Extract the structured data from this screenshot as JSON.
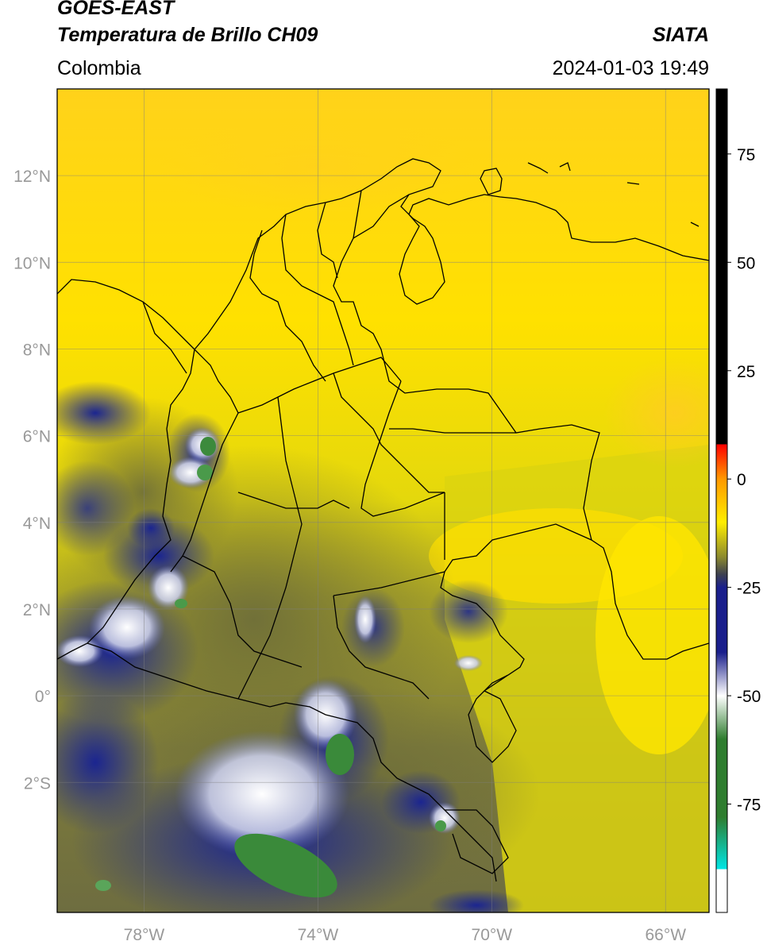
{
  "header": {
    "satellite": "GOES-EAST",
    "product": "Temperatura de Brillo CH09",
    "region": "Colombia",
    "agency": "SIATA",
    "datetime": "2024-01-03 19:49"
  },
  "map": {
    "lon_range": [
      -80,
      -65
    ],
    "lat_range": [
      -5,
      14
    ],
    "lat_ticks": [
      {
        "value": 12,
        "label": "12°N"
      },
      {
        "value": 10,
        "label": "10°N"
      },
      {
        "value": 8,
        "label": "8°N"
      },
      {
        "value": 6,
        "label": "6°N"
      },
      {
        "value": 4,
        "label": "4°N"
      },
      {
        "value": 2,
        "label": "2°N"
      },
      {
        "value": 0,
        "label": "0°"
      },
      {
        "value": -2,
        "label": "2°S"
      }
    ],
    "lon_ticks": [
      {
        "value": -78,
        "label": "78°W"
      },
      {
        "value": -74,
        "label": "74°W"
      },
      {
        "value": -70,
        "label": "70°W"
      },
      {
        "value": -66,
        "label": "66°W"
      }
    ],
    "grid": true
  },
  "colorbar": {
    "range": [
      -100,
      90
    ],
    "ticks": [
      {
        "value": 75,
        "label": "75"
      },
      {
        "value": 50,
        "label": "50"
      },
      {
        "value": 25,
        "label": "25"
      },
      {
        "value": 0,
        "label": "0"
      },
      {
        "value": -25,
        "label": "-25"
      },
      {
        "value": -50,
        "label": "-50"
      },
      {
        "value": -75,
        "label": "-75"
      }
    ],
    "colors": {
      "warm": "#000000",
      "red": "#ff0000",
      "orange": "#ff9900",
      "yellow": "#ffee00",
      "olive": "#8c8a2e",
      "gray": "#3d4050",
      "navy": "#1a1f8c",
      "white": "#ffffff",
      "green": "#2f7d2f",
      "cyan": "#00e5e5"
    }
  }
}
